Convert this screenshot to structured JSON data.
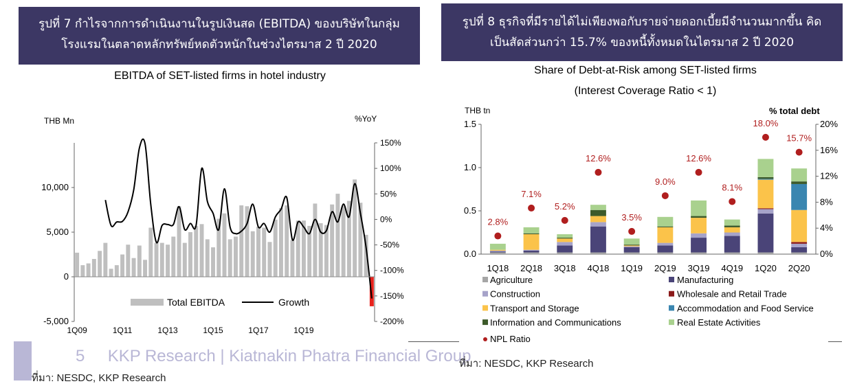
{
  "left": {
    "banner_line1": "รูปที่ 7 กำไรจากการดำเนินงานในรูปเงินสด (EBITDA) ของบริษัทในกลุ่ม",
    "banner_line2": "โรงแรมในตลาดหลักทรัพย์หดตัวหนักในช่วงไตรมาส 2 ปี 2020",
    "source": "ที่มา: NESDC, KKP Research"
  },
  "right": {
    "banner_line1": "รูปที่ 8 ธุรกิจที่มีรายได้ไม่เพียงพอกับรายจ่ายดอกเบี้ยมีจำนวนมากขึ้น คิด",
    "banner_line2": "เป็นสัดส่วนกว่า 15.7% ของหนี้ทั้งหมดในไตรมาส 2 ปี 2020",
    "source": "ที่มา: NESDC, KKP Research"
  },
  "footer": {
    "page_number": "5",
    "text": "KKP Research | Kiatnakin Phatra Financial Group"
  },
  "colors": {
    "banner": "#3c3764",
    "bar_grey": "#bfbfbf",
    "bar_neg": "#e8231d",
    "agriculture": "#a6a6a6",
    "manufacturing": "#4a4478",
    "construction": "#a6a3c9",
    "wholesale": "#8b1a1a",
    "transport": "#fbc34a",
    "accommodation": "#3a86b0",
    "infocomm": "#3d5a2a",
    "realestate": "#a9d18e",
    "npl": "#b01e1e"
  },
  "chart_data": [
    {
      "type": "bar",
      "title": "EBITDA of SET-listed firms in hotel industry",
      "ylabel": "THB Mn",
      "y2label": "%YoY",
      "ylim": [
        -5000,
        15000
      ],
      "y_ticks": [
        "-5,000",
        "0",
        "5,000",
        "10,000"
      ],
      "y2lim": [
        -200,
        150
      ],
      "y2_ticks": [
        "-200%",
        "-150%",
        "-100%",
        "-50%",
        "0%",
        "50%",
        "100%",
        "150%"
      ],
      "x_tick_labels": [
        "1Q09",
        "1Q11",
        "1Q13",
        "1Q15",
        "1Q17",
        "1Q19"
      ],
      "legend": [
        "Total EBITDA",
        "Growth"
      ],
      "series": [
        {
          "name": "Total EBITDA",
          "values": [
            2700,
            1300,
            1500,
            2000,
            2900,
            3800,
            900,
            1300,
            2500,
            3600,
            2100,
            3500,
            1900,
            5500,
            3800,
            3800,
            3600,
            4500,
            7900,
            3800,
            5000,
            5700,
            5900,
            4200,
            3300,
            6500,
            7100,
            4200,
            4500,
            8000,
            7900,
            5100,
            5600,
            5500,
            3900,
            6400,
            7700,
            8000,
            4100,
            6300,
            6300,
            5700,
            8200,
            6000,
            5800,
            8100,
            9300,
            7900,
            8500,
            10900,
            8300,
            4700,
            -3300
          ]
        },
        {
          "name": "Growth",
          "values": [
            null,
            null,
            null,
            null,
            null,
            38,
            -12,
            -5,
            -4,
            15,
            58,
            140,
            148,
            30,
            -45,
            -12,
            -10,
            -10,
            25,
            -20,
            -8,
            -12,
            100,
            35,
            12,
            -20,
            60,
            -15,
            -28,
            -23,
            -8,
            30,
            -15,
            -8,
            -25,
            5,
            20,
            43,
            -40,
            -5,
            -15,
            -28,
            0,
            -25,
            -22,
            15,
            -5,
            30,
            5,
            70,
            12,
            -55,
            -155
          ]
        }
      ]
    },
    {
      "type": "bar",
      "title": "Share of Debt-at-Risk among SET-listed firms",
      "subtitle": "(Interest Coverage Ratio < 1)",
      "ylabel": "THB tn",
      "y2label": "% total debt",
      "ylim": [
        0,
        1.5
      ],
      "y_ticks": [
        "0.0",
        "0.5",
        "1.0",
        "1.5"
      ],
      "y2lim": [
        0,
        20
      ],
      "y2_ticks": [
        "0%",
        "4%",
        "8%",
        "12%",
        "16%",
        "20%"
      ],
      "categories": [
        "1Q18",
        "2Q18",
        "3Q18",
        "4Q18",
        "1Q19",
        "2Q19",
        "3Q19",
        "4Q19",
        "1Q20",
        "2Q20"
      ],
      "series": [
        {
          "name": "Agriculture",
          "values": [
            0.02,
            0.02,
            0.02,
            0.02,
            0.02,
            0.02,
            0.02,
            0.02,
            0.02,
            0.02
          ]
        },
        {
          "name": "Manufacturing",
          "values": [
            0.01,
            0.02,
            0.08,
            0.3,
            0.06,
            0.08,
            0.17,
            0.19,
            0.45,
            0.06
          ]
        },
        {
          "name": "Construction",
          "values": [
            0.01,
            0.01,
            0.04,
            0.05,
            0.01,
            0.03,
            0.05,
            0.04,
            0.05,
            0.04
          ]
        },
        {
          "name": "Wholesale and Retail Trade",
          "values": [
            0.0,
            0.0,
            0.0,
            0.0,
            0.0,
            0.0,
            0.0,
            0.0,
            0.01,
            0.02
          ]
        },
        {
          "name": "Transport and Storage",
          "values": [
            0.01,
            0.18,
            0.04,
            0.07,
            0.01,
            0.18,
            0.18,
            0.06,
            0.33,
            0.37
          ]
        },
        {
          "name": "Accommodation and Food Service",
          "values": [
            0.0,
            0.0,
            0.0,
            0.0,
            0.0,
            0.0,
            0.0,
            0.0,
            0.01,
            0.3
          ]
        },
        {
          "name": "Information and Communications",
          "values": [
            0.0,
            0.01,
            0.01,
            0.07,
            0.01,
            0.01,
            0.02,
            0.02,
            0.02,
            0.03
          ]
        },
        {
          "name": "Real Estate Activities",
          "values": [
            0.07,
            0.07,
            0.04,
            0.06,
            0.07,
            0.11,
            0.18,
            0.07,
            0.21,
            0.15
          ]
        }
      ],
      "npl": {
        "name": "NPL Ratio",
        "values": [
          2.8,
          7.1,
          5.2,
          12.6,
          3.5,
          9.0,
          12.6,
          8.1,
          18.0,
          15.7
        ],
        "labels": [
          "2.8%",
          "7.1%",
          "5.2%",
          "12.6%",
          "3.5%",
          "9.0%",
          "12.6%",
          "8.1%",
          "18.0%",
          "15.7%"
        ]
      },
      "legend_position": "bottom"
    }
  ]
}
